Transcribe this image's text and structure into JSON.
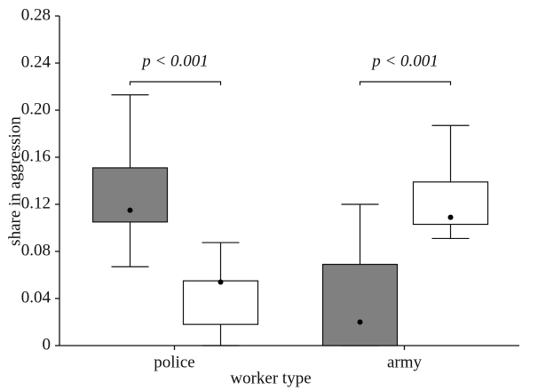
{
  "chart_data": {
    "type": "box",
    "x_label": "worker type",
    "y_label": "share in aggression",
    "categories": [
      "police",
      "army"
    ],
    "ylim": [
      0,
      0.28
    ],
    "yticks": [
      0,
      0.04,
      0.08,
      0.12,
      0.16,
      {
        "value": 0.2,
        "label": "0.20"
      },
      0.24,
      0.28
    ],
    "series": [
      {
        "color": "#808080",
        "boxes": [
          {
            "whisker_low": 0.067,
            "q1": 0.105,
            "q3": 0.151,
            "whisker_high": 0.213,
            "center": 0.115
          },
          {
            "whisker_low": 0,
            "q1": 0,
            "q3": 0.069,
            "whisker_high": 0.12,
            "center": 0.02
          }
        ]
      },
      {
        "color": "#ffffff",
        "boxes": [
          {
            "whisker_low": 0,
            "q1": 0.018,
            "q3": 0.055,
            "whisker_high": 0.0875,
            "center": 0.054
          },
          {
            "whisker_low": 0.091,
            "q1": 0.103,
            "q3": 0.139,
            "whisker_high": 0.187,
            "center": 0.109
          }
        ]
      }
    ],
    "annotations": [
      "p < 0.001",
      "p < 0.001"
    ]
  }
}
